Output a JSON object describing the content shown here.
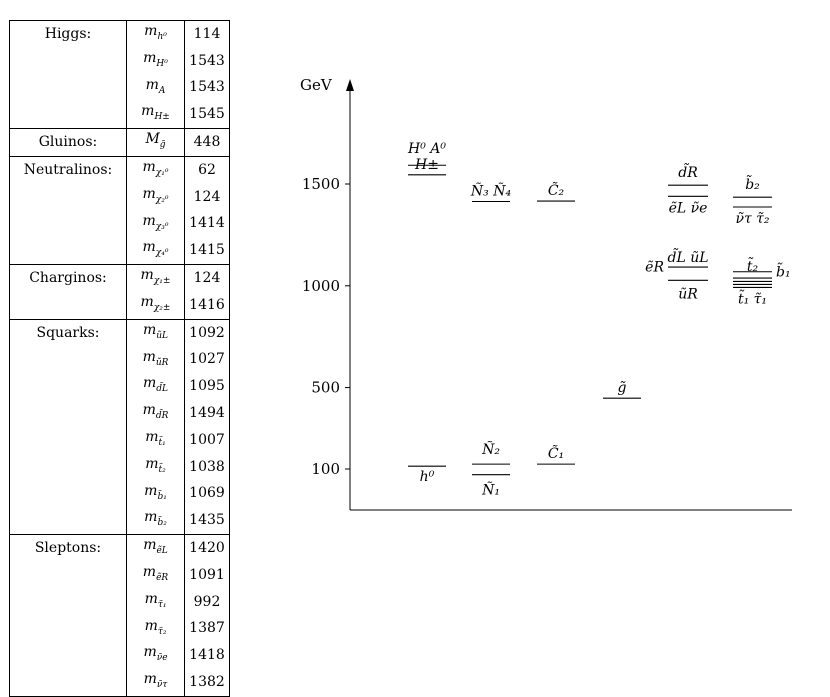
{
  "mass_table": {
    "groups": [
      {
        "name": "Higgs:",
        "rows": [
          {
            "symbol": "m",
            "sub": "h⁰",
            "value": "114"
          },
          {
            "symbol": "m",
            "sub": "H⁰",
            "value": "1543"
          },
          {
            "symbol": "m",
            "sub": "A",
            "value": "1543"
          },
          {
            "symbol": "m",
            "sub": "H±",
            "value": "1545"
          }
        ]
      },
      {
        "name": "Gluinos:",
        "rows": [
          {
            "symbol": "M",
            "sub": "g̃",
            "value": "448"
          }
        ]
      },
      {
        "name": "Neutralinos:",
        "rows": [
          {
            "symbol": "m",
            "sub": "χ₁⁰",
            "value": "62"
          },
          {
            "symbol": "m",
            "sub": "χ₂⁰",
            "value": "124"
          },
          {
            "symbol": "m",
            "sub": "χ₃⁰",
            "value": "1414"
          },
          {
            "symbol": "m",
            "sub": "χ₄⁰",
            "value": "1415"
          }
        ]
      },
      {
        "name": "Charginos:",
        "rows": [
          {
            "symbol": "m",
            "sub": "χ₁±",
            "value": "124"
          },
          {
            "symbol": "m",
            "sub": "χ₂±",
            "value": "1416"
          }
        ]
      },
      {
        "name": "Squarks:",
        "rows": [
          {
            "symbol": "m",
            "sub": "ũL",
            "value": "1092"
          },
          {
            "symbol": "m",
            "sub": "ũR",
            "value": "1027"
          },
          {
            "symbol": "m",
            "sub": "d̃L",
            "value": "1095"
          },
          {
            "symbol": "m",
            "sub": "d̃R",
            "value": "1494"
          },
          {
            "symbol": "m",
            "sub": "t̃₁",
            "value": "1007"
          },
          {
            "symbol": "m",
            "sub": "t̃₂",
            "value": "1038"
          },
          {
            "symbol": "m",
            "sub": "b̃₁",
            "value": "1069"
          },
          {
            "symbol": "m",
            "sub": "b̃₂",
            "value": "1435"
          }
        ]
      },
      {
        "name": "Sleptons:",
        "rows": [
          {
            "symbol": "m",
            "sub": "ẽL",
            "value": "1420"
          },
          {
            "symbol": "m",
            "sub": "ẽR",
            "value": "1091"
          },
          {
            "symbol": "m",
            "sub": "τ̃₁",
            "value": "992"
          },
          {
            "symbol": "m",
            "sub": "τ̃₂",
            "value": "1387"
          },
          {
            "symbol": "m",
            "sub": "ν̃e",
            "value": "1418"
          },
          {
            "symbol": "m",
            "sub": "ν̃τ",
            "value": "1382"
          }
        ]
      }
    ]
  },
  "chart_data": {
    "type": "level-diagram",
    "ylabel": "GeV",
    "yticks": [
      100,
      500,
      1000,
      1500
    ],
    "columns": [
      {
        "levels": [
          {
            "label": "h⁰",
            "mass": 114
          },
          {
            "label": "H⁰ A⁰",
            "mass": 1543
          },
          {
            "label": "H±",
            "mass": 1545
          }
        ]
      },
      {
        "levels": [
          {
            "label": "Ñ₁",
            "mass": 62
          },
          {
            "label": "Ñ₂",
            "mass": 124
          },
          {
            "label": "Ñ₃ Ñ₄",
            "mass": 1414
          }
        ]
      },
      {
        "levels": [
          {
            "label": "C̃₁",
            "mass": 124
          },
          {
            "label": "C̃₂",
            "mass": 1416
          }
        ]
      },
      {
        "levels": [
          {
            "label": "g̃",
            "mass": 448
          }
        ]
      },
      {
        "levels": [
          {
            "label": "ẽR",
            "mass": 1091
          },
          {
            "label": "d̃L ũL",
            "mass": 1092
          },
          {
            "label": "ũR",
            "mass": 1027
          },
          {
            "label": "ẽL ν̃e",
            "mass": 1420
          },
          {
            "label": "d̃R",
            "mass": 1494
          }
        ]
      },
      {
        "levels": [
          {
            "label": "t̃₁ τ̃₁",
            "mass": 992
          },
          {
            "label": "t̃₂",
            "mass": 1038
          },
          {
            "label": "b̃₁",
            "mass": 1069
          },
          {
            "label": "ν̃τ τ̃₂",
            "mass": 1387
          },
          {
            "label": "b̃₂",
            "mass": 1435
          }
        ]
      }
    ]
  }
}
